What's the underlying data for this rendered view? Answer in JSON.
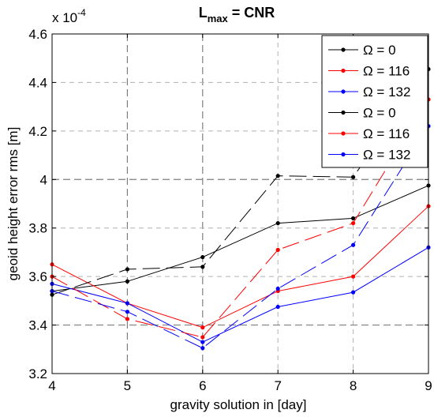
{
  "chart_data": {
    "type": "line",
    "title_main": "L",
    "title_sub": "max",
    "title_rest": " = CNR",
    "xlabel": "gravity solution in [day]",
    "ylabel": "geoid height error rms [m]",
    "y_multiplier_base": "x 10",
    "y_multiplier_exp": "-4",
    "xlim": [
      4,
      9
    ],
    "ylim": [
      3.2,
      4.6
    ],
    "x_ticks": [
      "4",
      "5",
      "6",
      "7",
      "8",
      "9"
    ],
    "y_ticks": [
      "3.2",
      "3.4",
      "3.6",
      "3.8",
      "4",
      "4.2",
      "4.4",
      "4.6"
    ],
    "grid": true,
    "legend_position": "top-right",
    "x": [
      4,
      5,
      6,
      7,
      8,
      9
    ],
    "series": [
      {
        "name": "Ω = 0",
        "color": "#000000",
        "style": "solid",
        "values": [
          3.54,
          3.58,
          3.68,
          3.82,
          3.84,
          3.975
        ]
      },
      {
        "name": "Ω = 116",
        "color": "#ff0000",
        "style": "solid",
        "values": [
          3.65,
          3.49,
          3.39,
          3.54,
          3.6,
          3.89
        ]
      },
      {
        "name": "Ω = 132",
        "color": "#0000ff",
        "style": "solid",
        "values": [
          3.57,
          3.49,
          3.33,
          3.475,
          3.535,
          3.72
        ]
      },
      {
        "name": "Ω = 0",
        "color": "#000000",
        "style": "dashed",
        "values": [
          3.525,
          3.63,
          3.64,
          4.015,
          4.01,
          4.455
        ]
      },
      {
        "name": "Ω = 116",
        "color": "#ff0000",
        "style": "dashed",
        "values": [
          3.6,
          3.425,
          3.35,
          3.71,
          3.82,
          4.33
        ]
      },
      {
        "name": "Ω = 132",
        "color": "#0000ff",
        "style": "dashed",
        "values": [
          3.54,
          3.455,
          3.305,
          3.55,
          3.73,
          4.22
        ]
      }
    ]
  }
}
